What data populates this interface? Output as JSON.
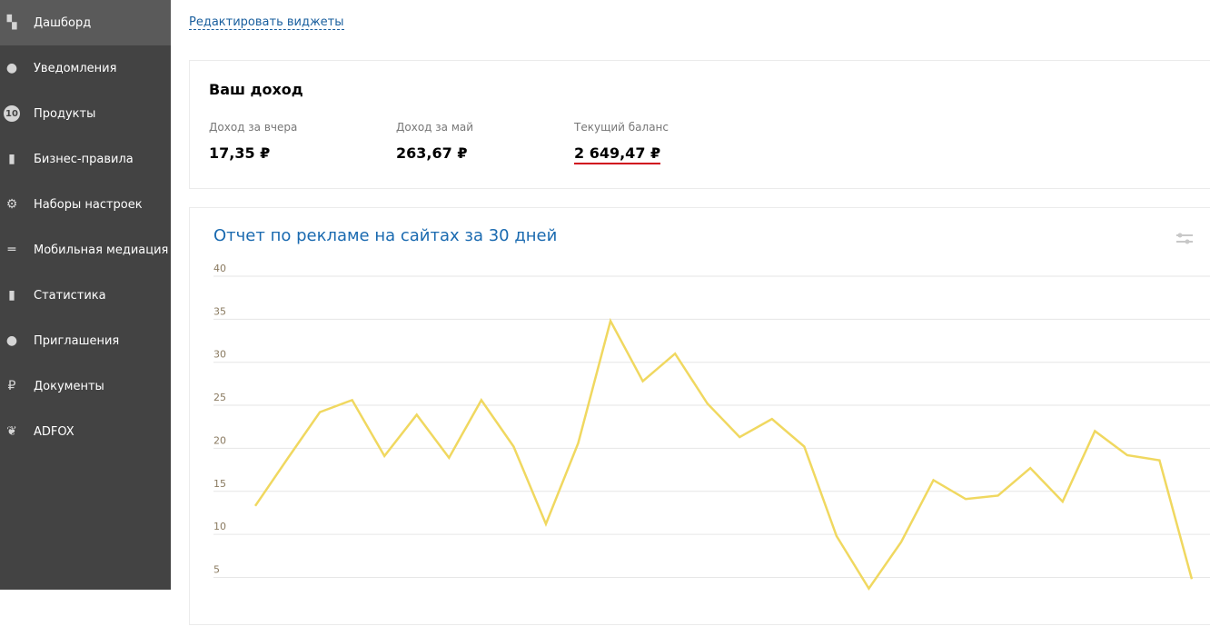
{
  "sidebar": {
    "items": [
      {
        "label": "Дашборд",
        "icon": "dashboard-icon",
        "active": true
      },
      {
        "label": "Уведомления",
        "icon": "lightbulb-icon"
      },
      {
        "label": "Продукты",
        "icon": "products-10-icon",
        "glyph": "10"
      },
      {
        "label": "Бизнес-правила",
        "icon": "document-check-icon"
      },
      {
        "label": "Наборы настроек",
        "icon": "settings-gear-icon"
      },
      {
        "label": "Мобильная медиация",
        "icon": "mediation-icon"
      },
      {
        "label": "Статистика",
        "icon": "bar-chart-icon"
      },
      {
        "label": "Приглашения",
        "icon": "add-user-icon"
      },
      {
        "label": "Документы",
        "icon": "ruble-document-icon"
      },
      {
        "label": "ADFOX",
        "icon": "adfox-leaf-icon"
      }
    ]
  },
  "edit_widgets": "Редактировать виджеты",
  "income": {
    "title": "Ваш доход",
    "stats": [
      {
        "label": "Доход за вчера",
        "value": "17,35 ₽"
      },
      {
        "label": "Доход за май",
        "value": "263,67 ₽"
      },
      {
        "label": "Текущий баланс",
        "value": "2 649,47 ₽"
      }
    ]
  },
  "report": {
    "title": "Отчет по рекламе на сайтах за 30 дней"
  },
  "chart_data": {
    "type": "line",
    "grid": true,
    "color": "#f0d860",
    "yticks": [
      5,
      10,
      15,
      20,
      25,
      30,
      35,
      40
    ],
    "ylim": [
      0,
      40
    ],
    "values": [
      13.3,
      18.8,
      24.2,
      25.6,
      19.1,
      23.9,
      18.9,
      25.6,
      20.2,
      11.2,
      20.6,
      34.8,
      27.8,
      31.0,
      25.2,
      21.3,
      23.4,
      20.2,
      9.8,
      3.7,
      9.1,
      16.3,
      14.1,
      14.5,
      17.7,
      13.8,
      22.0,
      19.2,
      18.6,
      4.8
    ]
  }
}
